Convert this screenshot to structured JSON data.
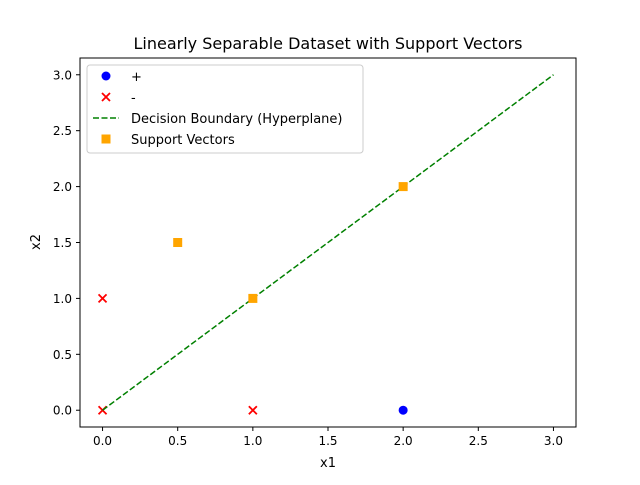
{
  "chart_data": {
    "type": "scatter",
    "title": "Linearly Separable Dataset with Support Vectors",
    "xlabel": "x1",
    "ylabel": "x2",
    "xlim": [
      -0.15,
      3.15
    ],
    "ylim": [
      -0.15,
      3.15
    ],
    "xticks": [
      "0.0",
      "0.5",
      "1.0",
      "1.5",
      "2.0",
      "2.5",
      "3.0"
    ],
    "yticks": [
      "0.0",
      "0.5",
      "1.0",
      "1.5",
      "2.0",
      "2.5",
      "3.0"
    ],
    "grid": false,
    "legend_position": "top-left",
    "series": [
      {
        "name": "+",
        "kind": "points",
        "marker": "circle",
        "color": "#0000ff",
        "points": [
          [
            2,
            0
          ]
        ]
      },
      {
        "name": "-",
        "kind": "points",
        "marker": "x",
        "color": "#ff0000",
        "points": [
          [
            0,
            0
          ],
          [
            0,
            1
          ],
          [
            1,
            0
          ]
        ]
      },
      {
        "name": "Decision Boundary (Hyperplane)",
        "kind": "line",
        "style": "dashed",
        "color": "#008000",
        "points": [
          [
            0,
            0
          ],
          [
            3,
            3
          ]
        ]
      },
      {
        "name": "Support Vectors",
        "kind": "points",
        "marker": "square",
        "color": "#ffa500",
        "points": [
          [
            0.5,
            1.5
          ],
          [
            1,
            1
          ],
          [
            2,
            2
          ]
        ]
      }
    ]
  }
}
